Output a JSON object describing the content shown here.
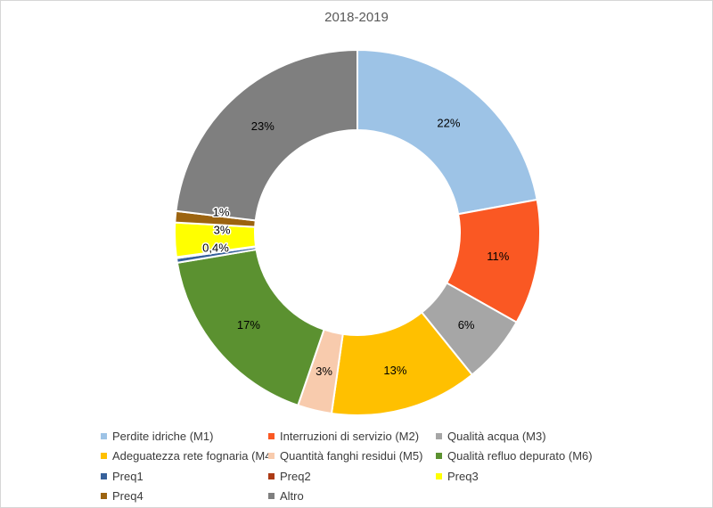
{
  "window": {
    "background": "#FFFFFF",
    "border_color": "#D6D6D6"
  },
  "colors": {
    "title_text": "#595959",
    "legend_text": "#3B3B3B",
    "data_label_text": "#000000",
    "slice_separator": "#FFFFFF"
  },
  "chart_data": {
    "type": "pie",
    "subtype": "donut",
    "title": "2018-2019",
    "legend_position": "bottom",
    "hole_ratio": 0.56,
    "center": [
      400,
      260
    ],
    "outer_radius": 205,
    "inner_radius": 115,
    "label_radius": 160,
    "start_angle_deg": 0,
    "direction": "clockwise",
    "slices": [
      {
        "name": "Perdite idriche (M1)",
        "value": 22,
        "label": "22%",
        "color": "#9DC3E6"
      },
      {
        "name": "Interruzioni di servizio (M2)",
        "value": 11,
        "label": "11%",
        "color": "#FA5823"
      },
      {
        "name": "Qualità acqua (M3)",
        "value": 6,
        "label": "6%",
        "color": "#A6A6A6"
      },
      {
        "name": "Adeguatezza rete fognaria (M4)",
        "value": 13,
        "label": "13%",
        "color": "#FFC000"
      },
      {
        "name": "Quantità fanghi residui (M5)",
        "value": 3,
        "label": "3%",
        "color": "#F8CBAD"
      },
      {
        "name": "Qualità refluo depurato (M6)",
        "value": 17,
        "label": "17%",
        "color": "#5B9130"
      },
      {
        "name": "Preq1",
        "value": 0.4,
        "label": "0,4%",
        "color": "#37619B",
        "label_pos": [
          241,
          277
        ]
      },
      {
        "name": "Preq2",
        "value": 0.1,
        "label": "",
        "color": "#AC3A15"
      },
      {
        "name": "Preq3",
        "value": 3,
        "label": "3%",
        "color": "#FFFF00",
        "label_pos": [
          248,
          257
        ]
      },
      {
        "name": "Preq4",
        "value": 1,
        "label": "1%",
        "color": "#9C6410",
        "label_pos": [
          247,
          237
        ]
      },
      {
        "name": "Altro",
        "value": 23,
        "label": "23%",
        "color": "#7F7F7F"
      }
    ]
  }
}
